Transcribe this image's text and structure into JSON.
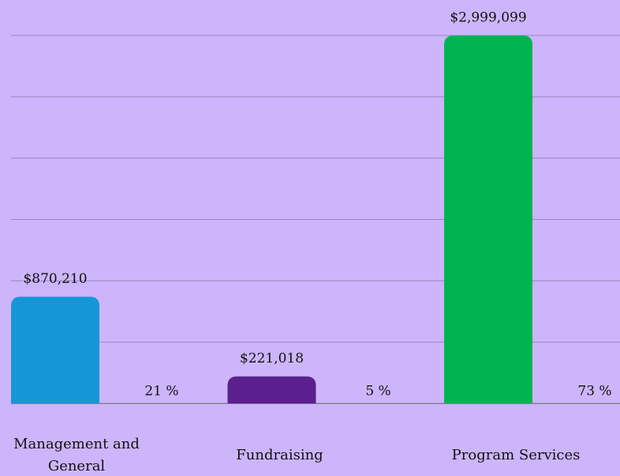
{
  "chart_data": {
    "type": "bar",
    "categories": [
      "Management and General",
      "Fundraising",
      "Program Services"
    ],
    "values": [
      870210,
      221018,
      2999099
    ],
    "value_labels": [
      "$870,210",
      "$221,018",
      "$2,999,099"
    ],
    "percent_labels": [
      "21 %",
      "5 %",
      "73 %"
    ],
    "colors": [
      "#1597d7",
      "#5c1f8e",
      "#00b450"
    ],
    "ylim": [
      0,
      3000000
    ],
    "yticks": [
      0,
      500000,
      1000000,
      1500000,
      2000000,
      2500000,
      3000000
    ],
    "grid": true
  }
}
